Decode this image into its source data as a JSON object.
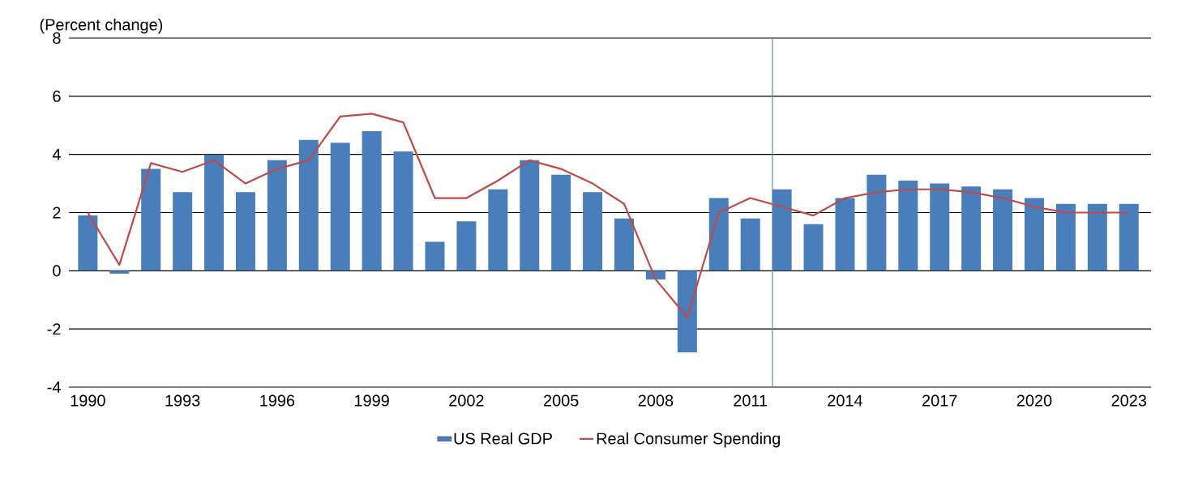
{
  "chart_data": {
    "type": "bar",
    "ylabel": "(Percent change)",
    "x": [
      1990,
      1991,
      1992,
      1993,
      1994,
      1995,
      1996,
      1997,
      1998,
      1999,
      2000,
      2001,
      2002,
      2003,
      2004,
      2005,
      2006,
      2007,
      2008,
      2009,
      2010,
      2011,
      2012,
      2013,
      2014,
      2015,
      2016,
      2017,
      2018,
      2019,
      2020,
      2021,
      2022,
      2023
    ],
    "series": [
      {
        "name": "US Real GDP",
        "color": "#4a7ebb",
        "values": [
          1.9,
          -0.1,
          3.5,
          2.7,
          4.0,
          2.7,
          3.8,
          4.5,
          4.4,
          4.8,
          4.1,
          1.0,
          1.7,
          2.8,
          3.8,
          3.3,
          2.7,
          1.8,
          -0.3,
          -2.8,
          2.5,
          1.8,
          2.8,
          1.6,
          2.5,
          3.3,
          3.1,
          3.0,
          2.9,
          2.8,
          2.5,
          2.3,
          2.3,
          2.3
        ]
      },
      {
        "name": "Real Consumer Spending",
        "type": "line",
        "color": "#be4b48",
        "values": [
          2.0,
          0.2,
          3.7,
          3.4,
          3.8,
          3.0,
          3.5,
          3.8,
          5.3,
          5.4,
          5.1,
          2.5,
          2.5,
          3.1,
          3.8,
          3.5,
          3.0,
          2.3,
          -0.3,
          -1.6,
          2.0,
          2.5,
          2.2,
          1.9,
          2.5,
          2.7,
          2.8,
          2.8,
          2.7,
          2.5,
          2.2,
          2.0,
          2.0,
          2.0
        ]
      }
    ],
    "xlim": [
      1989.4,
      2023.7
    ],
    "xticks": [
      1990,
      1993,
      1996,
      1999,
      2002,
      2005,
      2008,
      2011,
      2014,
      2017,
      2020,
      2023
    ],
    "ylim": [
      -4,
      8
    ],
    "yticks": [
      -4,
      -2,
      0,
      2,
      4,
      6,
      8
    ],
    "grid": "y",
    "legend": "bottom",
    "ref_lines": [
      {
        "axis": "x",
        "value": 2011.7,
        "color": "#6d8fa8"
      }
    ]
  }
}
